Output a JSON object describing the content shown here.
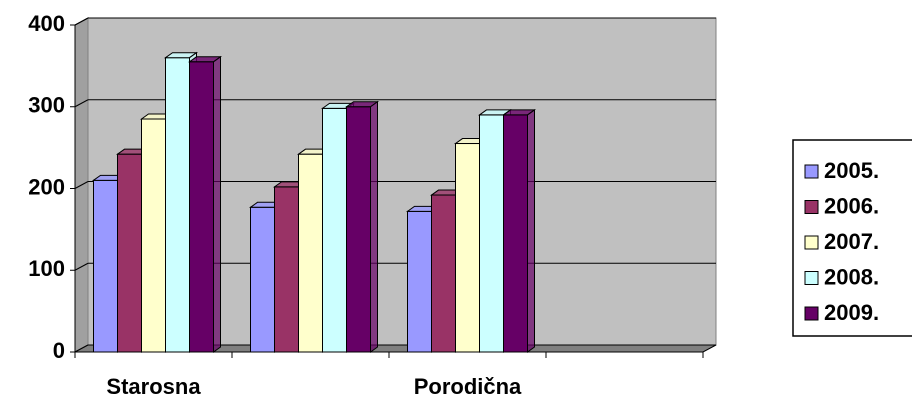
{
  "chart_data": {
    "type": "bar",
    "categories": [
      "Starosna",
      null,
      "Porodična",
      null
    ],
    "series": [
      {
        "name": "2005.",
        "color": "#9999ff",
        "values": [
          210,
          177,
          172,
          null
        ]
      },
      {
        "name": "2006.",
        "color": "#993366",
        "values": [
          242,
          202,
          192,
          null
        ]
      },
      {
        "name": "2007.",
        "color": "#ffffcc",
        "values": [
          285,
          242,
          255,
          null
        ]
      },
      {
        "name": "2008.",
        "color": "#ccffff",
        "values": [
          360,
          298,
          290,
          null
        ]
      },
      {
        "name": "2009.",
        "color": "#660066",
        "values": [
          355,
          300,
          290,
          null
        ]
      }
    ],
    "ylim": [
      0,
      400
    ],
    "yticks": [
      0,
      100,
      200,
      300,
      400
    ],
    "grid": true,
    "legend": "right"
  }
}
